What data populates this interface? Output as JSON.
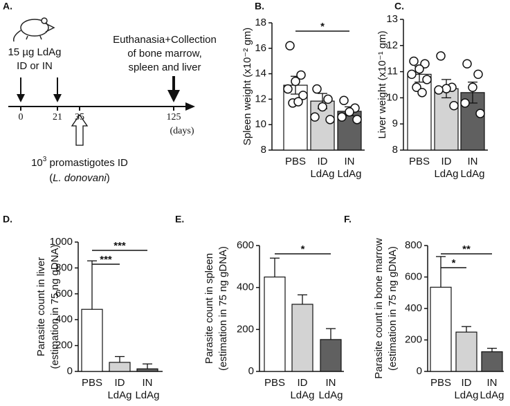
{
  "diagram": {
    "panel": "A.",
    "dose": [
      "15 µg LdAg",
      "ID or IN"
    ],
    "endpoint": [
      "Euthanasia+Collection",
      "of bone marrow,",
      "spleen and liver"
    ],
    "days": [
      "0",
      "21",
      "35",
      "125"
    ],
    "days_unit": "(days)",
    "challenge": {
      "base": "10",
      "exponent": "3",
      "text": " promastigotes ID",
      "open": "(",
      "species": "L. donovani",
      "close": ")"
    }
  },
  "chart_data": [
    {
      "type": "bar",
      "panel": "B.",
      "ylabel": [
        "Spleen weight (x10⁻² gm)"
      ],
      "categories": [
        "PBS",
        "ID LdAg",
        "IN LdAg"
      ],
      "error_bars": "both",
      "series": [
        {
          "values": [
            13.1,
            11.85,
            11.05
          ],
          "errors": [
            0.7,
            0.6,
            0.35
          ],
          "colors": [
            "#ffffff",
            "#d3d3d3",
            "#606060"
          ],
          "points": [
            [
              16.2,
              13.9,
              13.4,
              12.8,
              12.3,
              11.7,
              11.8
            ],
            [
              12.8,
              12.0,
              11.4,
              10.6,
              10.4
            ],
            [
              11.9,
              11.3,
              11.0,
              10.6,
              10.4
            ]
          ]
        }
      ],
      "ylim": [
        8,
        18
      ],
      "yticks": [
        8,
        10,
        12,
        14,
        16,
        18
      ],
      "significance": [
        {
          "between": [
            "PBS",
            "IN LdAg"
          ],
          "label": "*"
        }
      ]
    },
    {
      "type": "bar",
      "panel": "C.",
      "ylabel": [
        "Liver weight (x10⁻¹ gm)"
      ],
      "categories": [
        "PBS",
        "ID LdAg",
        "IN LdAg"
      ],
      "error_bars": "both",
      "series": [
        {
          "values": [
            10.9,
            10.35,
            10.2
          ],
          "errors": [
            0.3,
            0.35,
            0.4
          ],
          "colors": [
            "#ffffff",
            "#d3d3d3",
            "#606060"
          ],
          "points": [
            [
              11.4,
              11.3,
              11.1,
              10.9,
              10.7,
              10.4,
              10.2
            ],
            [
              11.6,
              10.4,
              10.35,
              10.3,
              9.7
            ],
            [
              11.3,
              10.9,
              10.4,
              9.8,
              9.4
            ]
          ]
        }
      ],
      "ylim": [
        8,
        13
      ],
      "yticks": [
        8,
        9,
        10,
        11,
        12,
        13
      ],
      "significance": []
    },
    {
      "type": "bar",
      "panel": "D.",
      "ylabel": [
        "Parasite count in liver",
        "(estimation in 75 ng gDNA)"
      ],
      "categories": [
        "PBS",
        "ID LdAg",
        "IN LdAg"
      ],
      "error_bars": "up",
      "series": [
        {
          "values": [
            480,
            70,
            20
          ],
          "errors": [
            375,
            45,
            38
          ],
          "colors": [
            "#ffffff",
            "#d3d3d3",
            "#606060"
          ]
        }
      ],
      "ylim": [
        0,
        1000
      ],
      "yticks": [
        0,
        200,
        400,
        600,
        800,
        1000
      ],
      "significance": [
        {
          "between": [
            "PBS",
            "ID LdAg"
          ],
          "label": "***"
        },
        {
          "between": [
            "PBS",
            "IN LdAg"
          ],
          "label": "***"
        }
      ]
    },
    {
      "type": "bar",
      "panel": "E.",
      "ylabel": [
        "Parasite count in spleen",
        "(estimation in 75 ng gDNA)"
      ],
      "categories": [
        "PBS",
        "ID LdAg",
        "IN LdAg"
      ],
      "error_bars": "up",
      "series": [
        {
          "values": [
            450,
            320,
            152
          ],
          "errors": [
            90,
            45,
            52
          ],
          "colors": [
            "#ffffff",
            "#d3d3d3",
            "#606060"
          ]
        }
      ],
      "ylim": [
        0,
        600
      ],
      "yticks": [
        0,
        200,
        400,
        600
      ],
      "significance": [
        {
          "between": [
            "PBS",
            "IN LdAg"
          ],
          "label": "*"
        }
      ]
    },
    {
      "type": "bar",
      "panel": "F.",
      "ylabel": [
        "Parasite count in bone marrow",
        "(estimation in 75 ng gDNA)"
      ],
      "categories": [
        "PBS",
        "ID LdAg",
        "IN LdAg"
      ],
      "error_bars": "up",
      "series": [
        {
          "values": [
            535,
            250,
            125
          ],
          "errors": [
            195,
            35,
            22
          ],
          "colors": [
            "#ffffff",
            "#d3d3d3",
            "#606060"
          ]
        }
      ],
      "ylim": [
        0,
        800
      ],
      "yticks": [
        0,
        200,
        400,
        600,
        800
      ],
      "significance": [
        {
          "between": [
            "PBS",
            "ID LdAg"
          ],
          "label": "*"
        },
        {
          "between": [
            "PBS",
            "IN LdAg"
          ],
          "label": "**"
        }
      ]
    }
  ]
}
